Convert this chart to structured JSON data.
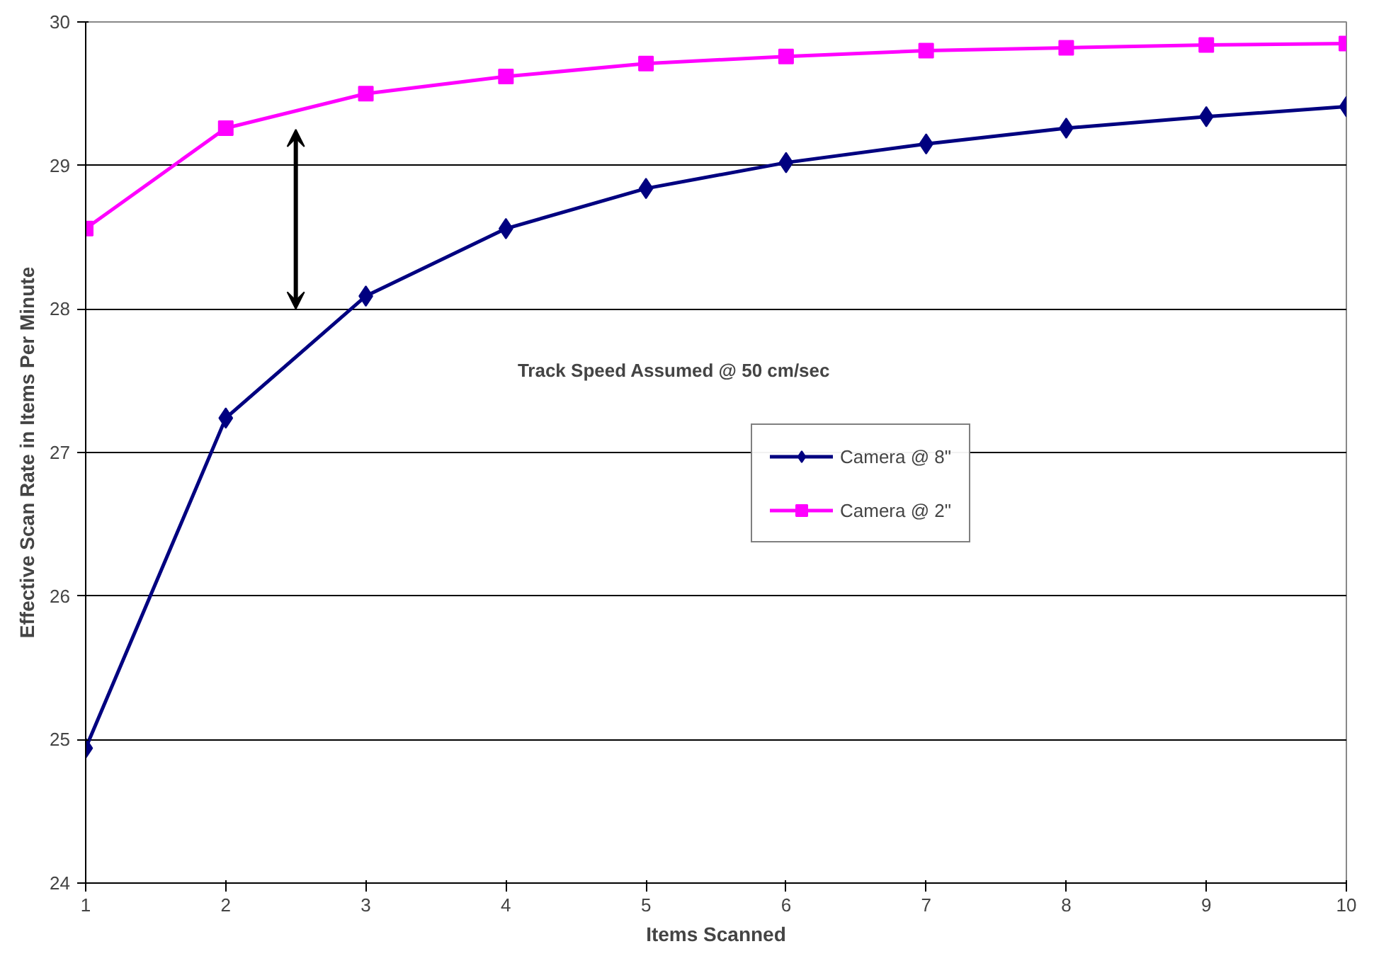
{
  "chart_data": {
    "type": "line",
    "xlabel": "Items Scanned",
    "ylabel": "Effective Scan Rate in Items Per Minute",
    "x": [
      1,
      2,
      3,
      4,
      5,
      6,
      7,
      8,
      9,
      10
    ],
    "series": [
      {
        "name": "Camera @ 8\"",
        "color": "#000080",
        "marker": "diamond",
        "values": [
          24.94,
          27.24,
          28.09,
          28.56,
          28.84,
          29.02,
          29.15,
          29.26,
          29.34,
          29.41
        ]
      },
      {
        "name": "Camera @ 2\"",
        "color": "#ff00ff",
        "marker": "square",
        "values": [
          28.56,
          29.26,
          29.5,
          29.62,
          29.71,
          29.76,
          29.8,
          29.82,
          29.84,
          29.85
        ]
      }
    ],
    "xlim": [
      1,
      10
    ],
    "xticks": [
      1,
      2,
      3,
      4,
      5,
      6,
      7,
      8,
      9,
      10
    ],
    "ylim": [
      24,
      30
    ],
    "yticks": [
      24,
      25,
      26,
      27,
      28,
      29,
      30
    ],
    "grid": "y",
    "legend": "right",
    "line_style": "solid",
    "annotations": [
      "Track Speed Assumed @ 50 cm/sec"
    ]
  }
}
